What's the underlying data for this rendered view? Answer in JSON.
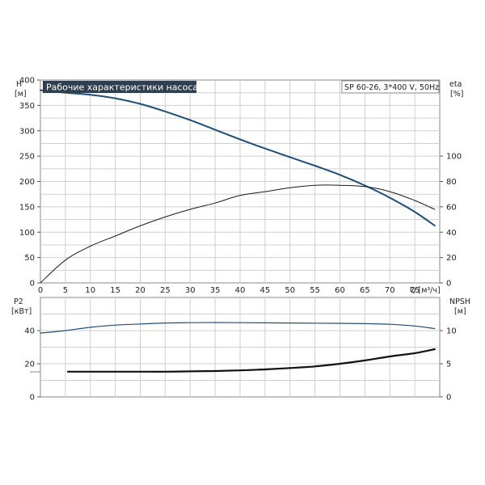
{
  "chart_data": [
    {
      "type": "line",
      "title": "Рабочие характеристики насоса",
      "subtitle": "SP 60-26, 3*400 V, 50Hz",
      "xlabel": "Q [м³/ч]",
      "xlim": [
        0,
        80
      ],
      "x_ticks": [
        0,
        5,
        10,
        15,
        20,
        25,
        30,
        35,
        40,
        45,
        50,
        55,
        60,
        65,
        70,
        75
      ],
      "ylabel_left": [
        "H",
        "[м]"
      ],
      "ylim_left": [
        0,
        400
      ],
      "y_ticks_left": [
        0,
        50,
        100,
        150,
        200,
        250,
        300,
        350,
        400
      ],
      "ylabel_right": [
        "eta",
        "[%]"
      ],
      "ylim_right": [
        0,
        160
      ],
      "y_ticks_right": [
        0,
        20,
        40,
        60,
        80,
        100
      ],
      "grid": true,
      "series": [
        {
          "axis": "left",
          "color": "#1f4e79",
          "width": 2,
          "x": [
            0,
            5,
            10,
            15,
            20,
            25,
            30,
            35,
            40,
            45,
            50,
            55,
            60,
            65,
            70,
            75,
            79
          ],
          "y": [
            380,
            375,
            371,
            364,
            353,
            338,
            321,
            302,
            283,
            265,
            248,
            231,
            213,
            192,
            168,
            140,
            113
          ]
        },
        {
          "axis": "right",
          "color": "#1a1a1a",
          "width": 1,
          "x": [
            0,
            5,
            10,
            15,
            20,
            25,
            30,
            35,
            40,
            45,
            50,
            55,
            60,
            65,
            70,
            75,
            79
          ],
          "y": [
            0,
            18,
            29,
            37,
            45,
            52,
            58,
            63,
            69,
            72,
            75,
            77,
            77,
            76,
            72,
            65,
            58
          ]
        }
      ]
    },
    {
      "type": "line",
      "xlim": [
        0,
        80
      ],
      "ylabel_left": [
        "P2",
        "[кВт]"
      ],
      "ylim_left": [
        0,
        60
      ],
      "y_ticks_left": [
        0,
        20,
        40
      ],
      "ylabel_right": [
        "NPSH",
        "[м]"
      ],
      "ylim_right": [
        0,
        15
      ],
      "y_ticks_right": [
        0,
        5,
        10
      ],
      "grid": true,
      "series": [
        {
          "axis": "left",
          "color": "#1f4e79",
          "width": 1.2,
          "x": [
            0,
            5,
            10,
            15,
            20,
            25,
            30,
            35,
            40,
            45,
            50,
            55,
            60,
            65,
            70,
            75,
            79
          ],
          "y": [
            38.5,
            40,
            42,
            43.3,
            44,
            44.6,
            44.8,
            44.9,
            44.8,
            44.7,
            44.6,
            44.5,
            44.4,
            44.2,
            43.8,
            42.8,
            41.2
          ]
        },
        {
          "axis": "right",
          "color": "#111111",
          "width": 2.2,
          "x": [
            5.5,
            10,
            15,
            20,
            25,
            30,
            35,
            40,
            45,
            50,
            55,
            60,
            65,
            70,
            75,
            79
          ],
          "y": [
            3.8,
            3.8,
            3.8,
            3.8,
            3.8,
            3.85,
            3.9,
            4.0,
            4.15,
            4.35,
            4.6,
            5.0,
            5.5,
            6.1,
            6.6,
            7.2
          ]
        }
      ]
    }
  ]
}
